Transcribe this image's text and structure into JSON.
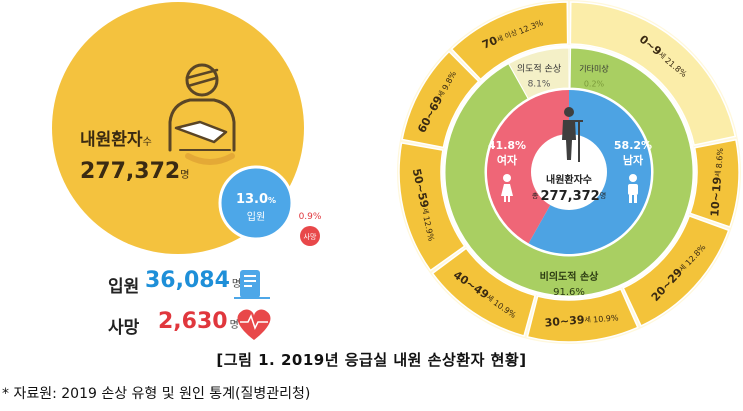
{
  "colors": {
    "big_circle": "#f4c23e",
    "admit_circle": "#4da7e8",
    "death_circle": "#e8484a",
    "female": "#ef6677",
    "male": "#4da3e3",
    "intentional": "#f4f0c7",
    "other": "#eef5c8",
    "unintentional": "#a9cf62",
    "outer_ring": "#f3c33a",
    "outer_ring_light": "#fbeda9",
    "gap": "#fff8dc",
    "blue_text": "#1e8fd8",
    "red_text": "#e0373d"
  },
  "left": {
    "total_label": "내원환자",
    "total_label_suffix": "수",
    "total_value": "277,372",
    "total_unit": "명",
    "admit_pct": "13.0",
    "admit_pct_unit": "%",
    "admit_label": "입원",
    "death_pct": "0.9%",
    "death_label": "사망",
    "admit_row_label": "입원",
    "admit_row_value": "36,084",
    "admit_row_unit": "명",
    "death_row_label": "사망",
    "death_row_value": "2,630",
    "death_row_unit": "명"
  },
  "chart_data": [
    {
      "type": "pie",
      "title": "",
      "center_label": "내원환자수",
      "center_prefix": "총",
      "center_value": "277,372",
      "center_unit": "명",
      "inner": [
        {
          "name": "여자",
          "value": 41.8,
          "label": "41.8%"
        },
        {
          "name": "남자",
          "value": 58.2,
          "label": "58.2%"
        }
      ],
      "middle": [
        {
          "name": "의도적 손상",
          "value": 8.1,
          "label": "8.1%"
        },
        {
          "name": "기타미상",
          "value": 0.2,
          "label": "0.2%"
        },
        {
          "name": "비의도적 손상",
          "value": 91.6,
          "label": "91.6%"
        }
      ],
      "outer": [
        {
          "name": "0~9",
          "suffix": "세",
          "value": 21.8,
          "label": "21.8%"
        },
        {
          "name": "10~19",
          "suffix": "세",
          "value": 8.6,
          "label": "8.6%"
        },
        {
          "name": "20~29",
          "suffix": "세",
          "value": 12.8,
          "label": "12.8%"
        },
        {
          "name": "30~39",
          "suffix": "세",
          "value": 10.9,
          "label": "10.9%"
        },
        {
          "name": "40~49",
          "suffix": "세",
          "value": 10.9,
          "label": "10.9%"
        },
        {
          "name": "50~59",
          "suffix": "세",
          "value": 12.9,
          "label": "12.9%"
        },
        {
          "name": "60~69",
          "suffix": "세",
          "value": 9.8,
          "label": "9.8%"
        },
        {
          "name": "70",
          "suffix": "세 이상",
          "value": 12.3,
          "label": "12.3%"
        }
      ]
    }
  ],
  "caption": "[그림 1. 2019년 응급실 내원 손상환자 현황]",
  "source": "* 자료원: 2019 손상 유형 및 원인 통계(질병관리청)"
}
